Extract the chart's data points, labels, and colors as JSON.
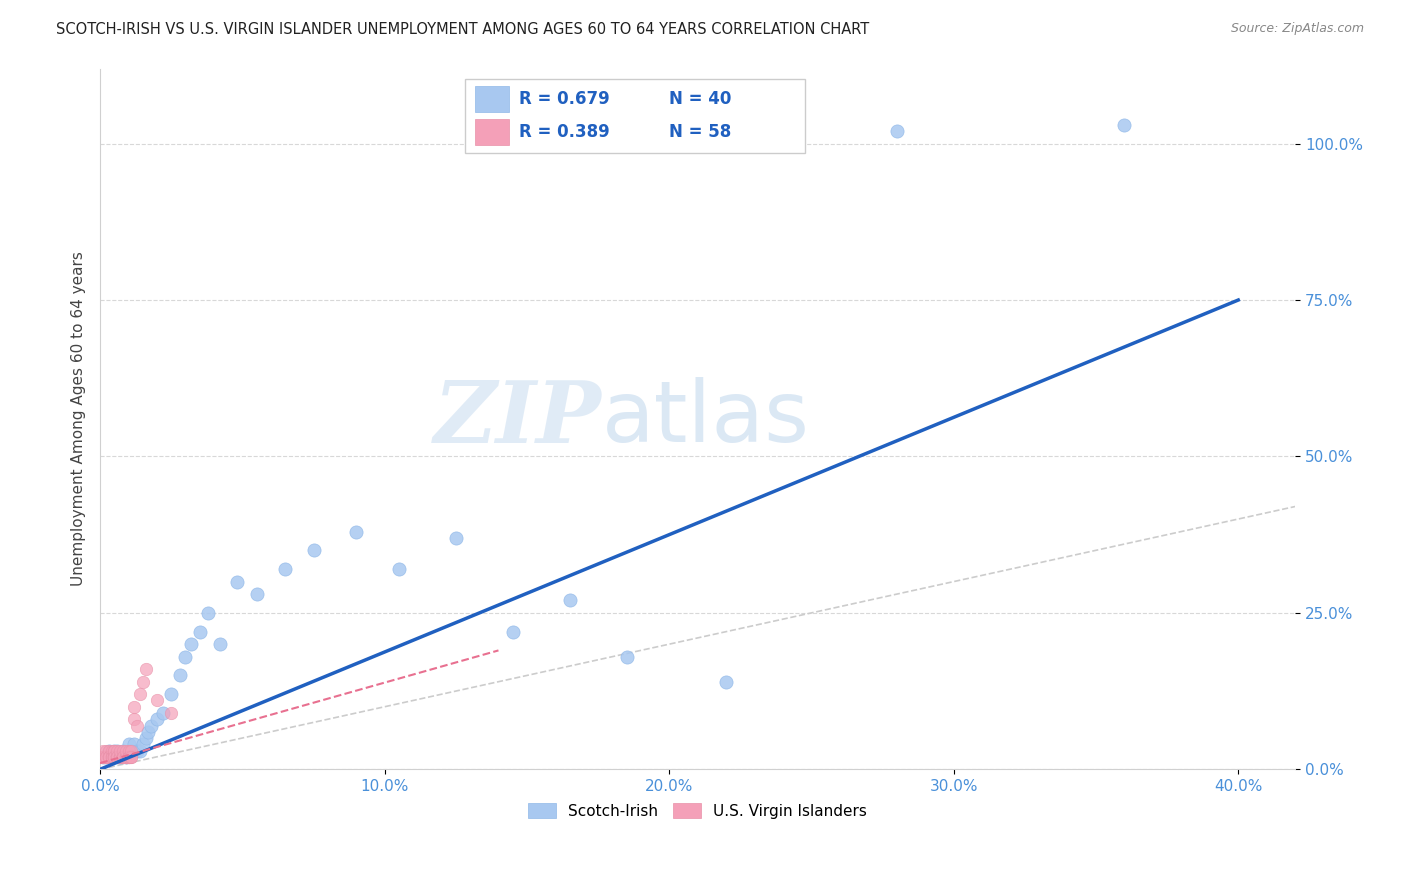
{
  "title": "SCOTCH-IRISH VS U.S. VIRGIN ISLANDER UNEMPLOYMENT AMONG AGES 60 TO 64 YEARS CORRELATION CHART",
  "source": "Source: ZipAtlas.com",
  "ylabel": "Unemployment Among Ages 60 to 64 years",
  "xlim": [
    0.0,
    0.42
  ],
  "ylim": [
    0.0,
    1.12
  ],
  "xticks": [
    0.0,
    0.1,
    0.2,
    0.3,
    0.4
  ],
  "xticklabels": [
    "0.0%",
    "10.0%",
    "20.0%",
    "30.0%",
    "40.0%"
  ],
  "yticks": [
    0.0,
    0.25,
    0.5,
    0.75,
    1.0
  ],
  "yticklabels": [
    "0.0%",
    "25.0%",
    "50.0%",
    "75.0%",
    "100.0%"
  ],
  "legend_R_blue": "0.679",
  "legend_N_blue": "40",
  "legend_R_pink": "0.389",
  "legend_N_pink": "58",
  "blue_color": "#A8C8F0",
  "pink_color": "#F4A0B8",
  "blue_line_color": "#2060C0",
  "pink_line_color": "#E87090",
  "watermark_zip": "ZIP",
  "watermark_atlas": "atlas",
  "scotch_irish_x": [
    0.001,
    0.002,
    0.003,
    0.004,
    0.005,
    0.006,
    0.007,
    0.008,
    0.009,
    0.01,
    0.011,
    0.012,
    0.013,
    0.014,
    0.015,
    0.016,
    0.017,
    0.018,
    0.02,
    0.022,
    0.025,
    0.028,
    0.03,
    0.032,
    0.035,
    0.038,
    0.042,
    0.048,
    0.055,
    0.065,
    0.075,
    0.09,
    0.105,
    0.125,
    0.145,
    0.165,
    0.185,
    0.22,
    0.28,
    0.36
  ],
  "scotch_irish_y": [
    0.02,
    0.02,
    0.03,
    0.02,
    0.03,
    0.03,
    0.02,
    0.03,
    0.02,
    0.04,
    0.03,
    0.04,
    0.03,
    0.03,
    0.04,
    0.05,
    0.06,
    0.07,
    0.08,
    0.09,
    0.12,
    0.15,
    0.18,
    0.2,
    0.22,
    0.25,
    0.2,
    0.3,
    0.28,
    0.32,
    0.35,
    0.38,
    0.32,
    0.37,
    0.22,
    0.27,
    0.18,
    0.14,
    1.02,
    1.03
  ],
  "vi_x": [
    0.0005,
    0.001,
    0.001,
    0.001,
    0.002,
    0.002,
    0.002,
    0.002,
    0.003,
    0.003,
    0.003,
    0.003,
    0.004,
    0.004,
    0.004,
    0.004,
    0.005,
    0.005,
    0.005,
    0.005,
    0.005,
    0.005,
    0.005,
    0.006,
    0.006,
    0.006,
    0.006,
    0.006,
    0.007,
    0.007,
    0.007,
    0.007,
    0.008,
    0.008,
    0.008,
    0.008,
    0.008,
    0.009,
    0.009,
    0.009,
    0.009,
    0.01,
    0.01,
    0.01,
    0.01,
    0.01,
    0.01,
    0.011,
    0.011,
    0.011,
    0.012,
    0.012,
    0.013,
    0.014,
    0.015,
    0.016,
    0.02,
    0.025
  ],
  "vi_y": [
    0.02,
    0.02,
    0.03,
    0.02,
    0.02,
    0.02,
    0.03,
    0.02,
    0.02,
    0.03,
    0.02,
    0.02,
    0.02,
    0.03,
    0.02,
    0.02,
    0.02,
    0.02,
    0.03,
    0.02,
    0.02,
    0.03,
    0.02,
    0.02,
    0.02,
    0.02,
    0.03,
    0.02,
    0.02,
    0.02,
    0.02,
    0.03,
    0.02,
    0.02,
    0.02,
    0.03,
    0.02,
    0.02,
    0.02,
    0.02,
    0.03,
    0.02,
    0.02,
    0.03,
    0.02,
    0.02,
    0.02,
    0.02,
    0.03,
    0.02,
    0.08,
    0.1,
    0.07,
    0.12,
    0.14,
    0.16,
    0.11,
    0.09
  ],
  "blue_line_x0": 0.0,
  "blue_line_y0": 0.0,
  "blue_line_x1": 0.4,
  "blue_line_y1": 0.75,
  "pink_line_x0": 0.0,
  "pink_line_y0": 0.01,
  "pink_line_x1": 0.14,
  "pink_line_y1": 0.19
}
